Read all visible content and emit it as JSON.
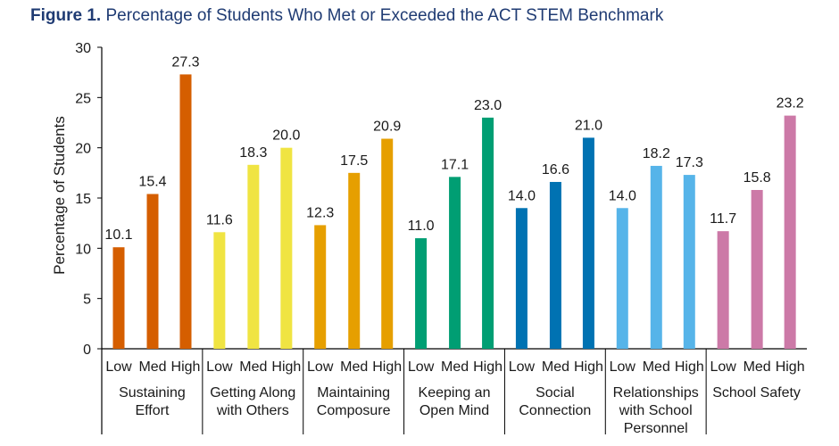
{
  "title": {
    "figure_label": "Figure 1.",
    "text": "Percentage of Students Who Met or Exceeded the ACT STEM Benchmark"
  },
  "chart_data": {
    "type": "bar",
    "ylabel": "Percentage of Students",
    "ylim": [
      0,
      30
    ],
    "yticks": [
      0,
      5,
      10,
      15,
      20,
      25,
      30
    ],
    "grid": false,
    "levels": [
      "Low",
      "Med",
      "High"
    ],
    "groups": [
      {
        "name": "Sustaining Effort",
        "label_lines": [
          "Sustaining",
          "Effort"
        ],
        "values": [
          10.1,
          15.4,
          27.3
        ],
        "labels": [
          "10.1",
          "15.4",
          "27.3"
        ],
        "color": "#d55e00"
      },
      {
        "name": "Getting Along with Others",
        "label_lines": [
          "Getting Along",
          "with Others"
        ],
        "values": [
          11.6,
          18.3,
          20.0
        ],
        "labels": [
          "11.6",
          "18.3",
          "20.0"
        ],
        "color": "#f0e442"
      },
      {
        "name": "Maintaining Composure",
        "label_lines": [
          "Maintaining",
          "Composure"
        ],
        "values": [
          12.3,
          17.5,
          20.9
        ],
        "labels": [
          "12.3",
          "17.5",
          "20.9"
        ],
        "color": "#e69f00"
      },
      {
        "name": "Keeping an Open Mind",
        "label_lines": [
          "Keeping an",
          "Open Mind"
        ],
        "values": [
          11.0,
          17.1,
          23.0
        ],
        "labels": [
          "11.0",
          "17.1",
          "23.0"
        ],
        "color": "#009e73"
      },
      {
        "name": "Social Connection",
        "label_lines": [
          "Social",
          "Connection"
        ],
        "values": [
          14.0,
          16.6,
          21.0
        ],
        "labels": [
          "14.0",
          "16.6",
          "21.0"
        ],
        "color": "#0072b2"
      },
      {
        "name": "Relationships with School Personnel",
        "label_lines": [
          "Relationships",
          "with School",
          "Personnel"
        ],
        "values": [
          14.0,
          18.2,
          17.3
        ],
        "labels": [
          "14.0",
          "18.2",
          "17.3"
        ],
        "color": "#56b4e9"
      },
      {
        "name": "School Safety",
        "label_lines": [
          "School Safety"
        ],
        "values": [
          11.7,
          15.8,
          23.2
        ],
        "labels": [
          "11.7",
          "15.8",
          "23.2"
        ],
        "color": "#cc79a7"
      }
    ]
  }
}
